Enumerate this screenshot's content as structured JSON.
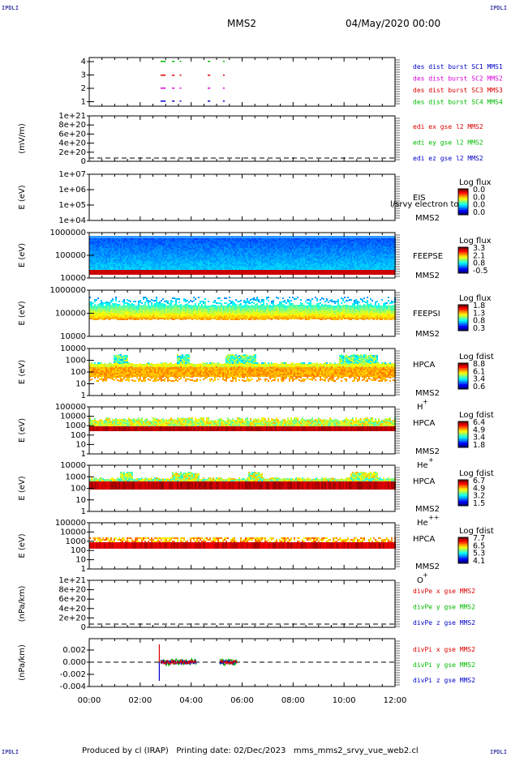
{
  "corners": {
    "tl": "IPDLI",
    "tr": "IPDLI",
    "bl": "IPDLI",
    "br": "IPDLI"
  },
  "header": {
    "spacecraft": "MMS2",
    "date": "04/May/2020 00:00"
  },
  "footer": {
    "produced": "Produced by cl (IRAP)",
    "printing": "Printing date: 02/Dec/2023",
    "file": "mms_mms2_srvy_vue_web2.cl"
  },
  "colors": {
    "red": "#dd0000",
    "green": "#00bb00",
    "blue": "#0000cc",
    "magenta": "#dd00dd",
    "darkblue": "#000088"
  },
  "chart_data": {
    "type": "heatmap",
    "x_ticks": [
      "00:00",
      "02:00",
      "04:00",
      "06:00",
      "08:00",
      "10:00",
      "12:00"
    ],
    "xlim_hours": [
      0,
      12
    ],
    "panels": [
      {
        "id": "burst",
        "type": "scatter",
        "yticks": [
          "4",
          "3",
          "2",
          "1"
        ],
        "legend": [
          {
            "label": "des dist burst SC1 MMS1",
            "color": "#0000cc"
          },
          {
            "label": "des dist burst SC2 MMS2",
            "color": "#dd00dd"
          },
          {
            "label": "des dist burst SC3 MMS3",
            "color": "#dd0000"
          },
          {
            "label": "des dist burst SC4 MMS4",
            "color": "#00bb00"
          }
        ]
      },
      {
        "id": "edi",
        "type": "line",
        "ylabel": "(mV/m)",
        "yticks": [
          "1e+21",
          "8e+20",
          "6e+20",
          "4e+20",
          "2e+20",
          "0"
        ],
        "legend": [
          {
            "label": "edi ex gse l2 MMS2",
            "color": "#dd0000"
          },
          {
            "label": "edi ey gse l2 MMS2",
            "color": "#00bb00"
          },
          {
            "label": "edi ez gse l2 MMS2",
            "color": "#0000cc"
          }
        ]
      },
      {
        "id": "eis",
        "type": "heatmap",
        "ylabel": "E (eV)",
        "yticks": [
          "1e+07",
          "1e+06",
          "1e+05",
          "1e+04"
        ],
        "inst": "EIS",
        "sc": "MMS2",
        "overlay": "l/srvy electron to",
        "cb_title": "Log flux",
        "cb_ticks": [
          "0.0",
          "0.0",
          "0.0",
          "0.0"
        ]
      },
      {
        "id": "feepse",
        "type": "heatmap",
        "ylabel": "E (eV)",
        "yticks": [
          "1000000",
          "100000",
          "10000"
        ],
        "inst": "FEEPSE",
        "sc": "MMS2",
        "cb_title": "Log flux",
        "cb_ticks": [
          "3.3",
          "2.1",
          "0.8",
          "-0.5"
        ]
      },
      {
        "id": "feepsi",
        "type": "heatmap",
        "ylabel": "E (eV)",
        "yticks": [
          "1000000",
          "100000",
          "10000"
        ],
        "inst": "FEEPSI",
        "sc": "MMS2",
        "cb_title": "Log flux",
        "cb_ticks": [
          "1.8",
          "1.3",
          "0.8",
          "0.3"
        ]
      },
      {
        "id": "hpca_h",
        "type": "heatmap",
        "ylabel": "E (eV)",
        "yticks": [
          "10000",
          "1000",
          "100",
          "10",
          "1"
        ],
        "inst": "HPCA",
        "sc": "MMS2",
        "species": "H",
        "sup": "+",
        "cb_title": "Log fdist",
        "cb_ticks": [
          "8.8",
          "6.1",
          "3.4",
          "0.6"
        ]
      },
      {
        "id": "hpca_he",
        "type": "heatmap",
        "ylabel": "E (eV)",
        "yticks": [
          "100000",
          "10000",
          "1000",
          "100",
          "10",
          "1"
        ],
        "inst": "HPCA",
        "sc": "MMS2",
        "species": "He",
        "sup": "+",
        "cb_title": "Log fdist",
        "cb_ticks": [
          "6.4",
          "4.9",
          "3.4",
          "1.8"
        ]
      },
      {
        "id": "hpca_hepp",
        "type": "heatmap",
        "ylabel": "E (eV)",
        "yticks": [
          "10000",
          "1000",
          "100",
          "10",
          "1"
        ],
        "inst": "HPCA",
        "sc": "MMS2",
        "species": "He",
        "sup": "++",
        "cb_title": "Log fdist",
        "cb_ticks": [
          "6.7",
          "4.9",
          "3.2",
          "1.5"
        ]
      },
      {
        "id": "hpca_o",
        "type": "heatmap",
        "ylabel": "E (eV)",
        "yticks": [
          "100000",
          "10000",
          "1000",
          "100",
          "10",
          "1"
        ],
        "inst": "HPCA",
        "sc": "MMS2",
        "species": "O",
        "sup": "+",
        "cb_title": "Log fdist",
        "cb_ticks": [
          "7.7",
          "6.5",
          "5.3",
          "4.1"
        ]
      },
      {
        "id": "divpe",
        "type": "line",
        "ylabel": "(nPa/km)",
        "yticks": [
          "1e+21",
          "8e+20",
          "6e+20",
          "4e+20",
          "2e+20",
          "0"
        ],
        "legend": [
          {
            "label": "divPe x gse MMS2",
            "color": "#dd0000"
          },
          {
            "label": "divPe y gse MMS2",
            "color": "#00bb00"
          },
          {
            "label": "divPe z gse MMS2",
            "color": "#0000cc"
          }
        ]
      },
      {
        "id": "divpi",
        "type": "line",
        "ylabel": "(nPa/km)",
        "yticks": [
          "0.002",
          "0.000",
          "-0.002",
          "-0.004"
        ],
        "legend": [
          {
            "label": "divPi x gse MMS2",
            "color": "#dd0000"
          },
          {
            "label": "divPi y gse MMS2",
            "color": "#00bb00"
          },
          {
            "label": "divPi z gse MMS2",
            "color": "#0000cc"
          }
        ]
      }
    ]
  }
}
